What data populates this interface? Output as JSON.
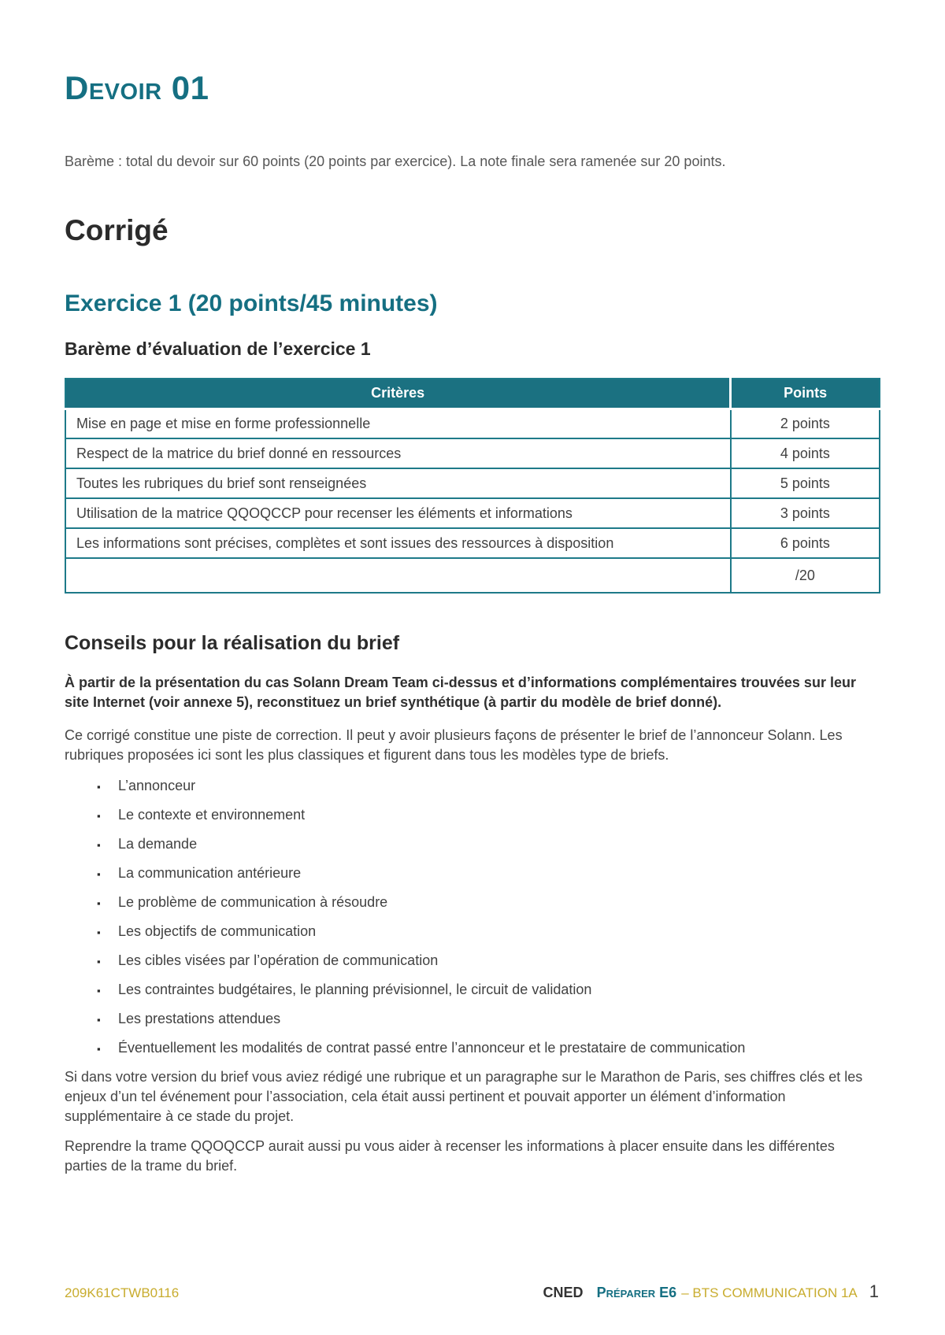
{
  "page": {
    "title": "Devoir 01",
    "bareme_note": "Barème : total du devoir sur 60 points (20 points par exercice). La note finale sera ramenée sur 20 points.",
    "corrige_heading": "Corrigé",
    "exercice_heading": "Exercice 1 (20 points/45 minutes)",
    "bareme_table_heading": "Barème d’évaluation de l’exercice 1"
  },
  "table": {
    "headers": [
      "Critères",
      "Points"
    ],
    "rows": [
      {
        "criteria": "Mise en page et mise en forme professionnelle",
        "points": "2 points"
      },
      {
        "criteria": "Respect de la matrice du brief donné en ressources",
        "points": "4 points"
      },
      {
        "criteria": "Toutes les rubriques du brief sont renseignées",
        "points": "5 points"
      },
      {
        "criteria": "Utilisation de la matrice QQOQCCP pour recenser les éléments et informations",
        "points": "3 points"
      },
      {
        "criteria": "Les informations sont précises, complètes et sont issues des ressources à disposition",
        "points": "6 points"
      },
      {
        "criteria": "",
        "points": "/20"
      }
    ]
  },
  "conseils": {
    "heading": "Conseils pour la réalisation du brief",
    "intro_bold": "À partir de la présentation du cas Solann Dream Team ci-dessus et d’informations complémentaires trouvées sur leur site Internet (voir annexe 5), reconstituez un brief synthétique (à partir du modèle de brief donné).",
    "para1": "Ce corrigé constitue une piste de correction. Il peut y avoir plusieurs façons de présenter le brief de l’annonceur Solann. Les rubriques proposées ici sont les plus classiques et figurent dans tous les modèles type de briefs.",
    "bullet_char": "▪",
    "bullets": [
      "L’annonceur",
      "Le contexte et environnement",
      "La demande",
      "La communication antérieure",
      "Le problème de communication à résoudre",
      "Les objectifs de communication",
      "Les cibles visées par l’opération de communication",
      "Les contraintes budgétaires, le planning prévisionnel, le circuit de validation",
      "Les prestations attendues",
      "Éventuellement les modalités de contrat passé entre l’annonceur et le prestataire de communication"
    ],
    "para2": "Si dans votre version du brief vous aviez rédigé une rubrique et un paragraphe sur le Marathon de Paris, ses chiffres clés et les enjeux d’un tel événement pour l’association, cela était aussi pertinent et pouvait apporter un élément d’information supplémentaire à ce stade du projet.",
    "para3": "Reprendre la trame QQOQCCP aurait aussi pu vous aider à recenser les informations à placer ensuite dans les différentes parties de la trame du brief."
  },
  "footer": {
    "document_code": "209K61CTWB0116",
    "brand": "CNED",
    "course_prefix": "Préparer",
    "course_code": "E6",
    "course_suffix": "– BTS COMMUNICATION 1A",
    "page_number": "1"
  },
  "colors": {
    "teal": "#156F82",
    "table_header_teal": "#1B7181",
    "gold": "#C8AC2E"
  }
}
